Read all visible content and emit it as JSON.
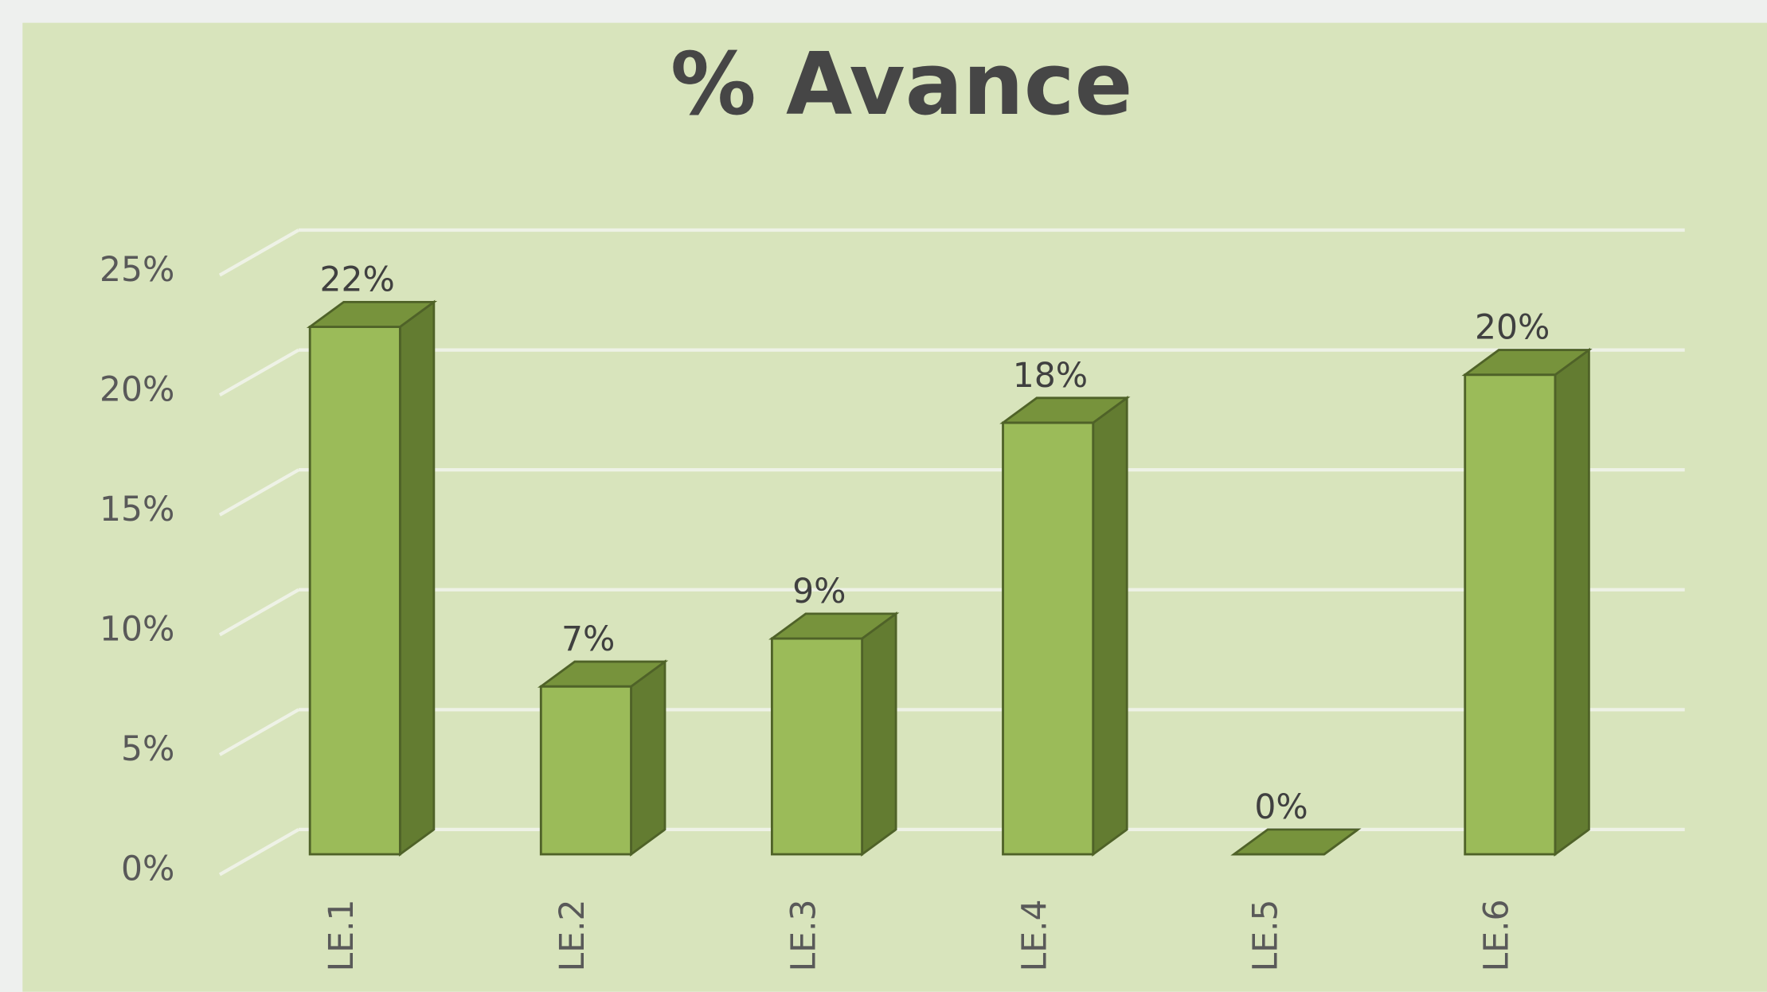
{
  "chart_data": {
    "type": "bar3d",
    "title": "% Avance",
    "categories": [
      "LE.1",
      "LE.2",
      "LE.3",
      "LE.4",
      "LE.5",
      "LE.6"
    ],
    "values": [
      22,
      7,
      9,
      18,
      0,
      20
    ],
    "value_labels": [
      "22%",
      "7%",
      "9%",
      "18%",
      "0%",
      "20%"
    ],
    "color": "#9bbb59",
    "ylim": [
      0,
      25
    ],
    "yticks": [
      {
        "value": 0,
        "label": "0%"
      },
      {
        "value": 5,
        "label": "5%"
      },
      {
        "value": 10,
        "label": "10%"
      },
      {
        "value": 15,
        "label": "15%"
      },
      {
        "value": 20,
        "label": "20%"
      },
      {
        "value": 25,
        "label": "25%"
      }
    ],
    "grid": true
  }
}
